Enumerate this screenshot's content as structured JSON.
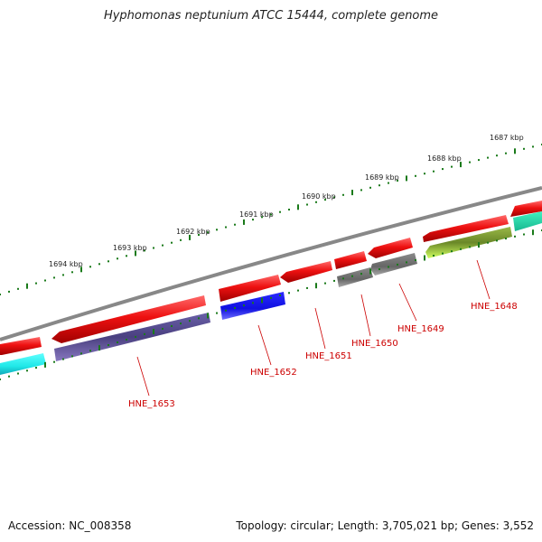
{
  "title": "Hyphomonas neptunium ATCC 15444, complete genome",
  "footer": {
    "accession": "Accession: NC_008358",
    "summary": "Topology: circular; Length: 3,705,021 bp; Genes: 3,552"
  },
  "ruler": {
    "tick_labels": [
      "1687 kbp",
      "1688 kbp",
      "1689 kbp",
      "1690 kbp",
      "1691 kbp",
      "1692 kbp",
      "1693 kbp",
      "1694 kbp"
    ],
    "tick_color": "#1a7a1a"
  },
  "backbone_color": "#888888",
  "genes": [
    {
      "label": "HNE_1648",
      "color": "#7a9a30"
    },
    {
      "label": "HNE_1649",
      "color": "#707070"
    },
    {
      "label": "HNE_1650",
      "color": "#707070"
    },
    {
      "label": "HNE_1651",
      "color": "#ee1111"
    },
    {
      "label": "HNE_1652",
      "color": "#1010e0"
    },
    {
      "label": "HNE_1653",
      "color": "#4a4080"
    }
  ],
  "feature_colors": {
    "cds_red": "#ee1111",
    "light_green": "#b8f040",
    "cyan": "#20e8e8",
    "teal": "#20d0a0"
  },
  "label_color": "#cc0000"
}
